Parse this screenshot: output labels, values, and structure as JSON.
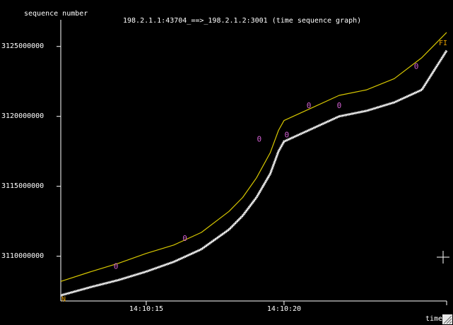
{
  "window": {
    "y_axis_title": "sequence number",
    "graph_title": "198.2.1.1:43704_==>_198.2.1.2:3001 (time sequence graph)",
    "x_axis_title": "time"
  },
  "chart_data": {
    "type": "line",
    "title": "198.2.1.1:43704_==>_198.2.1.2:3001 (time sequence graph)",
    "xlabel": "time",
    "ylabel": "sequence number",
    "y_ticks": [
      "3125000000",
      "3120000000",
      "3115000000",
      "3110000000"
    ],
    "y_tick_values": [
      3125000000,
      3120000000,
      3115000000,
      3110000000
    ],
    "x_ticks": [
      "14:10:15",
      "14:10:20"
    ],
    "x_tick_values": [
      855,
      860
    ],
    "xlim": [
      851.9,
      865.9
    ],
    "ylim": [
      3106800000,
      3126300000
    ],
    "grid": false,
    "series": [
      {
        "name": "",
        "color": "#ffffff",
        "x": [
          851.9,
          853.0,
          854.0,
          855.0,
          856.0,
          857.0,
          858.0,
          858.5,
          859.0,
          859.5,
          859.8,
          860.0,
          861.0,
          862.0,
          863.0,
          864.0,
          865.0,
          865.9
        ],
        "y": [
          3107200000,
          3107800000,
          3108300000,
          3108900000,
          3109600000,
          3110500000,
          3111900000,
          3112900000,
          3114200000,
          3115900000,
          3117500000,
          3118200000,
          3119100000,
          3120000000,
          3120400000,
          3121000000,
          3121900000,
          3124700000
        ]
      },
      {
        "name": "",
        "color": "#d8c800",
        "x": [
          851.9,
          853.0,
          854.0,
          855.0,
          856.0,
          857.0,
          858.0,
          858.5,
          859.0,
          859.5,
          859.8,
          860.0,
          861.0,
          862.0,
          863.0,
          864.0,
          865.0,
          865.9
        ],
        "y": [
          3108200000,
          3108900000,
          3109500000,
          3110200000,
          3110800000,
          3111700000,
          3113200000,
          3114200000,
          3115600000,
          3117400000,
          3119000000,
          3119700000,
          3120600000,
          3121500000,
          3121900000,
          3122700000,
          3124200000,
          3126000000
        ]
      }
    ],
    "markers": {
      "color": "#d060d0",
      "glyph": "0",
      "x": [
        853.9,
        856.4,
        859.1,
        860.1,
        860.9,
        862.0,
        864.8
      ],
      "y": [
        3109300000,
        3111300000,
        3118400000,
        3118700000,
        3120800000,
        3120800000,
        3123600000
      ]
    },
    "flags": {
      "start_label": "N",
      "end_label": "FI",
      "color": "#e6a000"
    }
  }
}
